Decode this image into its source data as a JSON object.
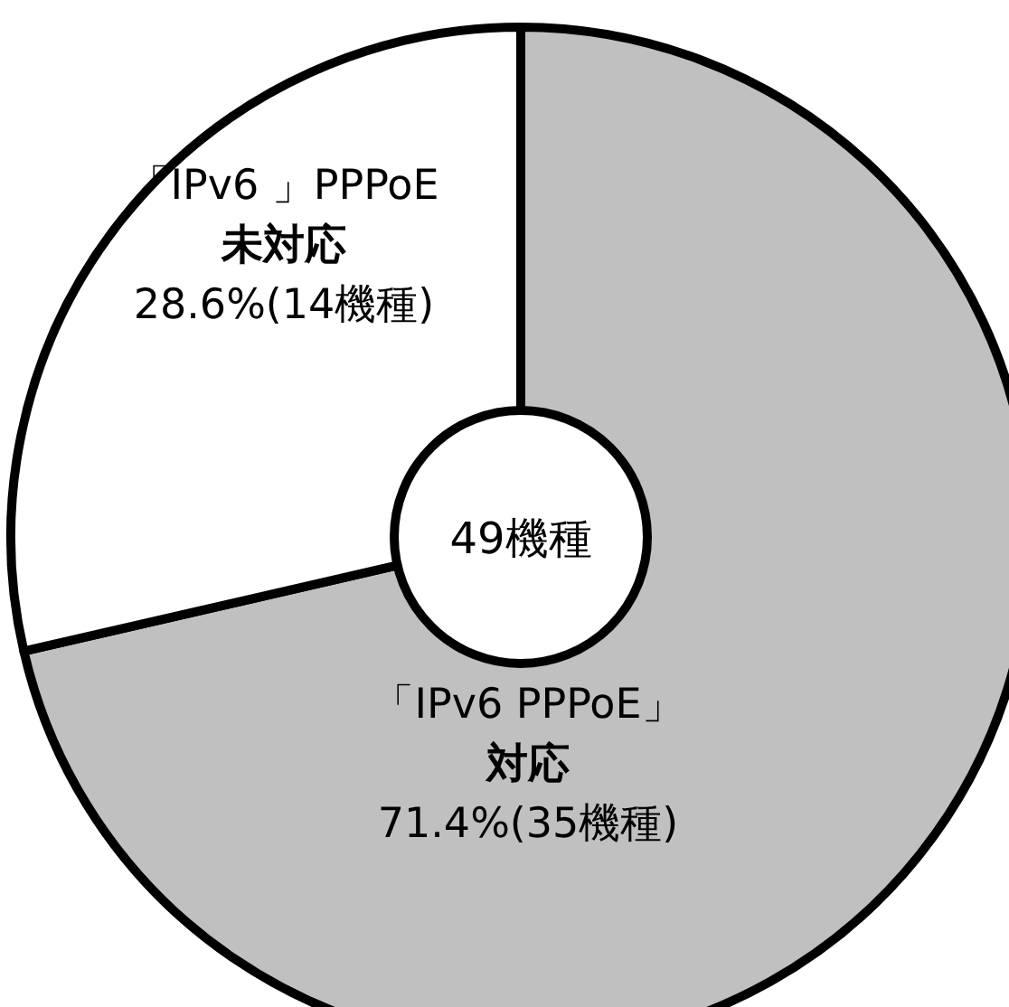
{
  "chart_data": {
    "type": "donut",
    "categories": [
      "「IPv6 PPPoE」対応",
      "「IPv6 」PPPoE未対応"
    ],
    "values": [
      71.4,
      28.6
    ],
    "colors": [
      "#c0c0c0",
      "#ffffff"
    ],
    "value_labels": [
      "71.4%(35機種)",
      "28.6%(14機種)"
    ],
    "annotations": [
      "49機種"
    ]
  }
}
